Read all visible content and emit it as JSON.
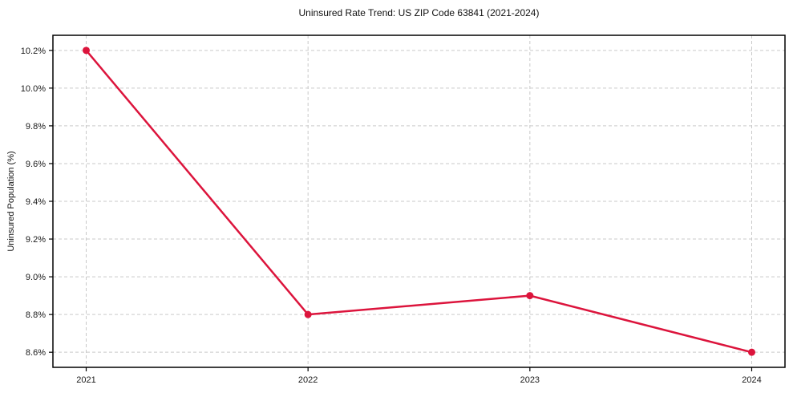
{
  "figure": {
    "title": "Uninsured Rate Trend: US ZIP Code 63841 (2021-2024)",
    "ylabel": "Uninsured Population (%)"
  },
  "chart_data": {
    "type": "line",
    "title": "Uninsured Rate Trend: US ZIP Code 63841 (2021-2024)",
    "xlabel": "",
    "ylabel": "Uninsured Population (%)",
    "categories": [
      "2021",
      "2022",
      "2023",
      "2024"
    ],
    "x": [
      2021,
      2022,
      2023,
      2024
    ],
    "series": [
      {
        "name": "Uninsured Population (%)",
        "values": [
          10.2,
          8.8,
          8.9,
          8.6
        ]
      }
    ],
    "y_ticks": [
      8.6,
      8.8,
      9.0,
      9.2,
      9.4,
      9.6,
      9.8,
      10.0,
      10.2
    ],
    "y_tick_suffix": "%",
    "xlim": [
      2020.85,
      2024.15
    ],
    "ylim": [
      8.52,
      10.28
    ],
    "grid": true,
    "grid_style": "dashed",
    "legend_position": "none",
    "colors": {
      "line": "#DC143C",
      "grid": "#c9c9c9",
      "axis": "#000000",
      "text": "#1a1a1a",
      "background": "#ffffff"
    }
  }
}
